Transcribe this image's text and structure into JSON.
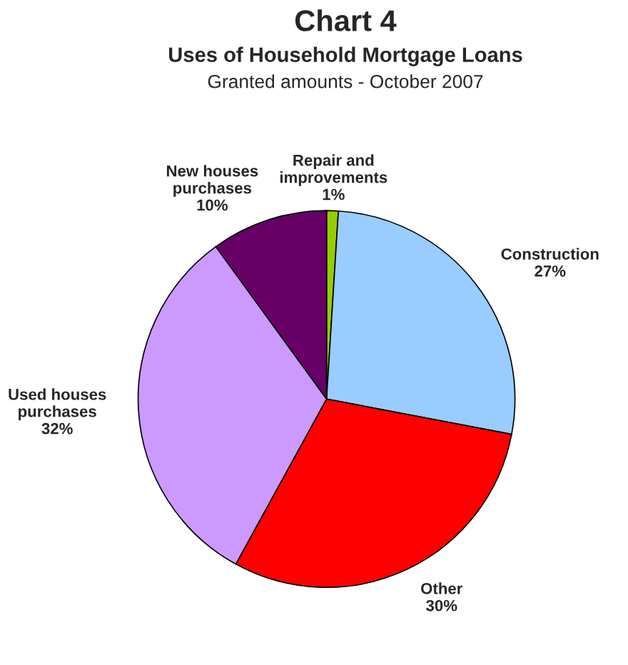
{
  "chart_data": {
    "type": "pie",
    "title": "Chart 4",
    "subtitle": "Uses of Household Mortgage Loans",
    "annotations": [
      "Granted amounts - October 2007"
    ],
    "categories": [
      "Repair and\nimprovements",
      "Construction",
      "Other",
      "Used houses\npurchases",
      "New houses\npurchases"
    ],
    "values": [
      1,
      27,
      30,
      32,
      10
    ],
    "value_labels": [
      "1%",
      "27%",
      "30%",
      "32%",
      "10%"
    ],
    "colors": [
      "#99cc00",
      "#99ccff",
      "#ff0000",
      "#cc99ff",
      "#660066"
    ]
  }
}
